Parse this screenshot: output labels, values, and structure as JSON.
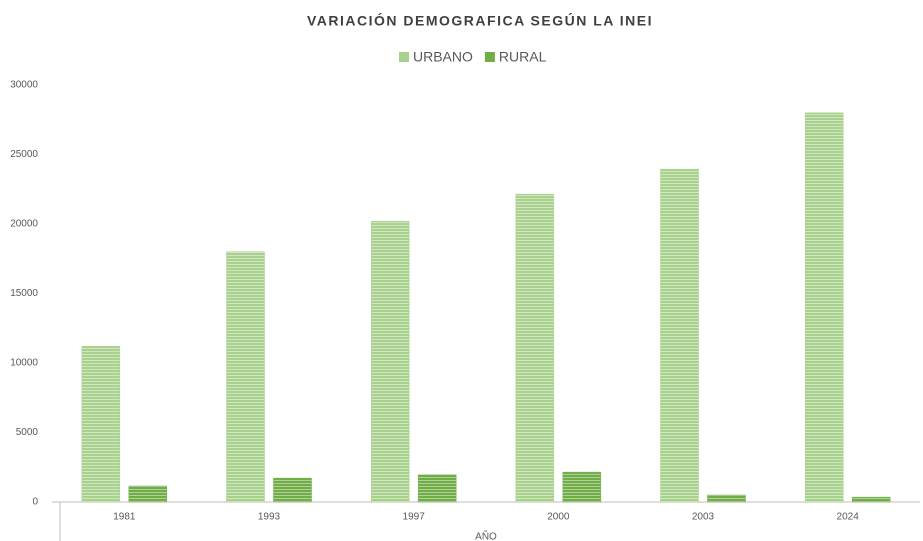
{
  "chart_data": {
    "type": "bar",
    "title": "VARIACIÓN DEMOGRAFICA SEGÚN LA INEI",
    "x_label": "AÑO",
    "categories": [
      "1981",
      "1993",
      "1997",
      "2000",
      "2003",
      "2024"
    ],
    "series": [
      {
        "name": "URBANO",
        "color": "#a9d18e",
        "values": [
          11200,
          18000,
          20200,
          22150,
          23950,
          28000
        ]
      },
      {
        "name": "RURAL",
        "color": "#70ad47",
        "values": [
          1150,
          1720,
          1950,
          2150,
          500,
          350
        ]
      }
    ],
    "ylim": [
      0,
      30000
    ],
    "yticks": [
      0,
      5000,
      10000,
      15000,
      20000,
      25000,
      30000
    ],
    "grid": false,
    "legend": "top"
  }
}
